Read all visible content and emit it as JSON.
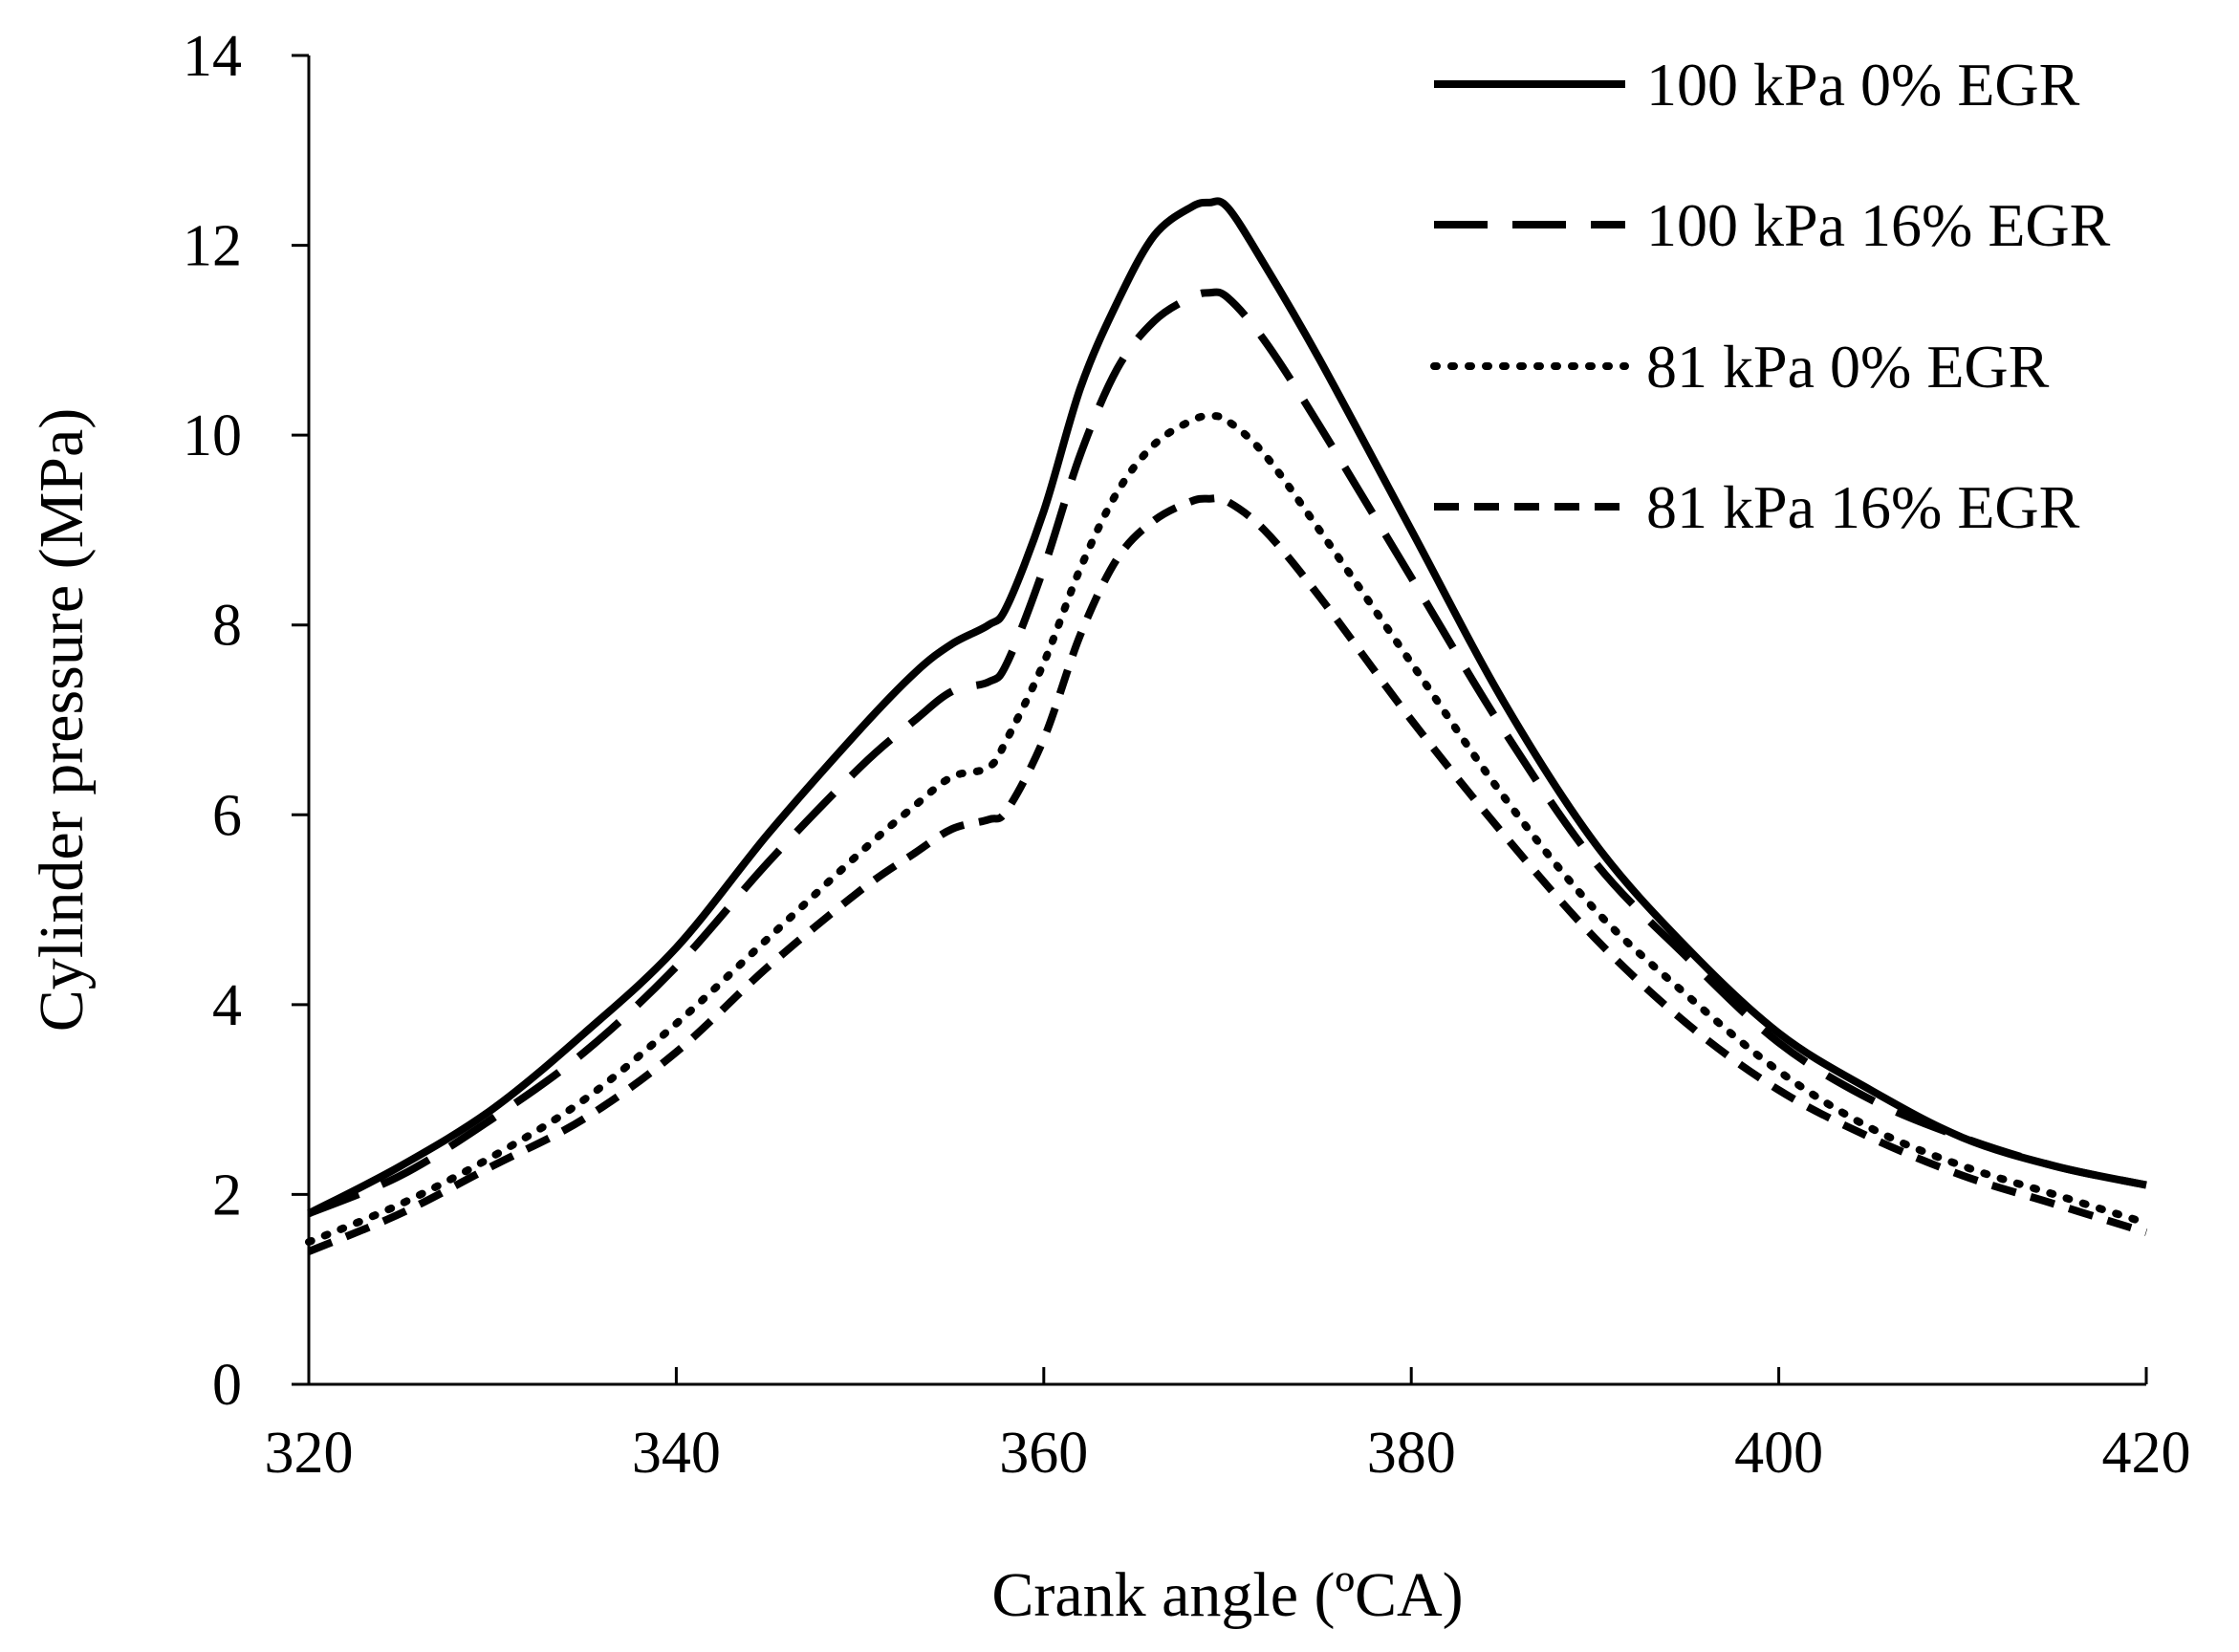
{
  "chart_data": {
    "type": "line",
    "title": "",
    "xlabel": "Crank angle (ºCA)",
    "ylabel": "Cylinder pressure (MPa)",
    "xlim": [
      320,
      420
    ],
    "ylim": [
      0,
      14
    ],
    "xticks": [
      320,
      340,
      360,
      380,
      400,
      420
    ],
    "yticks": [
      0,
      2,
      4,
      6,
      8,
      10,
      12,
      14
    ],
    "grid": false,
    "legend_position": "top-right",
    "series": [
      {
        "name": "100 kPa 0% EGR",
        "style": "solid",
        "x": [
          320,
          325,
          330,
          335,
          340,
          345,
          350,
          353,
          355,
          357,
          358,
          360,
          362,
          364,
          366,
          368,
          369,
          370,
          372,
          375,
          380,
          385,
          390,
          395,
          400,
          405,
          410,
          415,
          420
        ],
        "y": [
          1.8,
          2.3,
          2.9,
          3.7,
          4.6,
          5.8,
          6.9,
          7.5,
          7.8,
          8.0,
          8.2,
          9.2,
          10.5,
          11.4,
          12.1,
          12.4,
          12.45,
          12.4,
          11.8,
          10.8,
          9.0,
          7.2,
          5.7,
          4.6,
          3.7,
          3.1,
          2.6,
          2.3,
          2.1
        ]
      },
      {
        "name": "100 kPa 16% EGR",
        "style": "long-dash",
        "x": [
          320,
          325,
          330,
          335,
          340,
          345,
          350,
          353,
          355,
          357,
          358,
          360,
          362,
          364,
          366,
          368,
          369,
          370,
          372,
          375,
          380,
          385,
          390,
          395,
          400,
          405,
          410,
          415,
          420
        ],
        "y": [
          1.8,
          2.2,
          2.8,
          3.5,
          4.4,
          5.5,
          6.5,
          7.0,
          7.3,
          7.4,
          7.6,
          8.6,
          9.8,
          10.7,
          11.2,
          11.45,
          11.5,
          11.45,
          11.0,
          10.1,
          8.5,
          6.9,
          5.5,
          4.5,
          3.6,
          3.0,
          2.6,
          2.3,
          2.1
        ]
      },
      {
        "name": "81 kPa 0% EGR",
        "style": "dotted",
        "x": [
          320,
          325,
          330,
          335,
          340,
          345,
          350,
          353,
          355,
          357,
          358,
          360,
          362,
          364,
          366,
          368,
          369,
          370,
          372,
          375,
          380,
          385,
          390,
          395,
          400,
          405,
          410,
          415,
          420
        ],
        "y": [
          1.5,
          1.9,
          2.4,
          3.0,
          3.8,
          4.7,
          5.6,
          6.1,
          6.4,
          6.5,
          6.8,
          7.6,
          8.6,
          9.4,
          9.9,
          10.15,
          10.2,
          10.15,
          9.8,
          9.0,
          7.6,
          6.2,
          5.0,
          4.1,
          3.3,
          2.7,
          2.3,
          2.0,
          1.7
        ]
      },
      {
        "name": "81 kPa 16% EGR",
        "style": "short-dash",
        "x": [
          320,
          325,
          330,
          335,
          340,
          345,
          350,
          353,
          355,
          357,
          358,
          360,
          362,
          364,
          366,
          368,
          369,
          370,
          372,
          375,
          380,
          385,
          390,
          395,
          400,
          405,
          410,
          415,
          420
        ],
        "y": [
          1.4,
          1.8,
          2.3,
          2.8,
          3.5,
          4.4,
          5.2,
          5.6,
          5.85,
          5.95,
          6.05,
          6.8,
          7.9,
          8.7,
          9.1,
          9.3,
          9.33,
          9.3,
          9.0,
          8.3,
          7.0,
          5.8,
          4.7,
          3.8,
          3.1,
          2.6,
          2.2,
          1.9,
          1.6
        ]
      }
    ]
  }
}
